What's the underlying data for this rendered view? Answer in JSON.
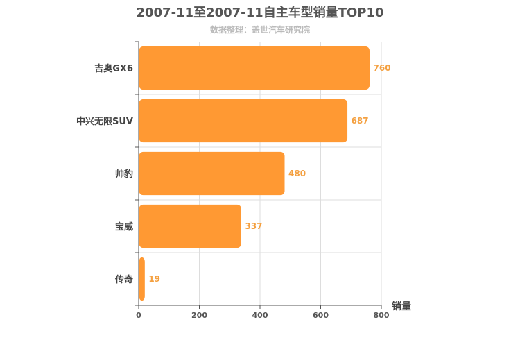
{
  "chart_data": {
    "type": "bar",
    "orientation": "horizontal",
    "title": "2007-11至2007-11自主车型销量TOP10",
    "subtitle": "数据整理：盖世汽车研究院",
    "xlabel": "销量",
    "categories": [
      "吉奥GX6",
      "中兴无限SUV",
      "帅豹",
      "宝威",
      "传奇"
    ],
    "values": [
      760,
      687,
      480,
      337,
      19
    ],
    "xlim": [
      0,
      800
    ],
    "xticks": [
      0,
      200,
      400,
      600,
      800
    ],
    "grid": true,
    "bar_color": "#ff9933",
    "label_color": "#f4a040"
  }
}
